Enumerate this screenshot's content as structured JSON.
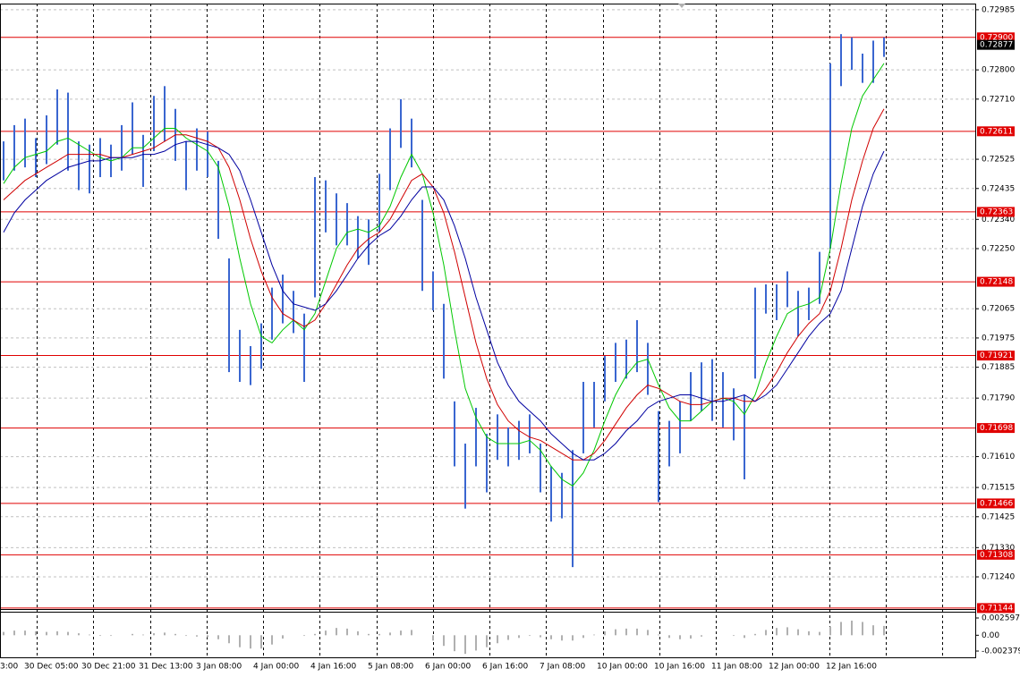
{
  "chart_data": {
    "type": "ohlc",
    "bar_color": "#3a66d0",
    "grid": true,
    "ylim": [
      0.71141,
      0.73004
    ],
    "yticks": [
      0.72985,
      {
        "value": 0.728,
        "label": "0.72800"
      },
      {
        "value": 0.7271,
        "label": "0.72710"
      },
      0.72525,
      0.72435,
      {
        "value": 0.7234,
        "label": "0.72340"
      },
      {
        "value": 0.7225,
        "label": "0.72250"
      },
      0.72065,
      0.71975,
      0.71885,
      {
        "value": 0.7179,
        "label": "0.71790"
      },
      {
        "value": 0.7161,
        "label": "0.71610"
      },
      0.71515,
      0.71425,
      {
        "value": 0.7133,
        "label": "0.71330"
      },
      {
        "value": 0.7124,
        "label": "0.71240"
      }
    ],
    "levels": {
      "color": "#e00000",
      "values": [
        {
          "value": 0.729,
          "label": "0.72900"
        },
        {
          "value": 0.72611,
          "label": "0.72611"
        },
        {
          "value": 0.72363,
          "label": "0.72363"
        },
        {
          "value": 0.72148,
          "label": "0.72148"
        },
        {
          "value": 0.71921,
          "label": "0.71921"
        },
        {
          "value": 0.71698,
          "label": "0.71698"
        },
        {
          "value": 0.71466,
          "label": "0.71466"
        },
        {
          "value": 0.71308,
          "label": "0.71308"
        },
        {
          "value": 0.71144,
          "label": "0.71144"
        }
      ]
    },
    "current_price": 0.72877,
    "time_labels": [
      "3:00",
      "30 Dec 05:00",
      "30 Dec 21:00",
      "31 Dec 13:00",
      "3 Jan 08:00",
      "4 Jan 00:00",
      "4 Jan 16:00",
      "5 Jan 08:00",
      "6 Jan 00:00",
      "6 Jan 16:00",
      "7 Jan 08:00",
      "10 Jan 00:00",
      "10 Jan 16:00",
      "11 Jan 08:00",
      "12 Jan 00:00",
      "12 Jan 16:00"
    ],
    "low": [
      0.7246,
      0.7249,
      0.725,
      0.7247,
      0.7251,
      0.7257,
      0.7249,
      0.7243,
      0.7242,
      0.7247,
      0.7247,
      0.7249,
      0.7254,
      0.7244,
      0.7255,
      0.7258,
      0.7252,
      0.7243,
      0.7249,
      0.7247,
      0.7228,
      0.7187,
      0.7184,
      0.7183,
      0.7188,
      0.7197,
      0.7202,
      0.7199,
      0.7184,
      0.721,
      0.723,
      0.7226,
      0.7226,
      0.7222,
      0.722,
      0.723,
      0.7243,
      0.7256,
      0.725,
      0.7212,
      0.7206,
      0.7185,
      0.7158,
      0.7145,
      0.7158,
      0.715,
      0.716,
      0.7158,
      0.716,
      0.7162,
      0.715,
      0.7141,
      0.7142,
      0.7127,
      0.7162,
      0.717,
      0.7178,
      0.7184,
      0.7185,
      0.7187,
      0.718,
      0.7147,
      0.7158,
      0.7162,
      0.7172,
      0.7175,
      0.7172,
      0.717,
      0.7166,
      0.7154,
      0.7185,
      0.7205,
      0.7203,
      0.7207,
      0.7198,
      0.7203,
      0.7208,
      0.7225,
      0.7275,
      0.728,
      0.7276,
      0.7276,
      0.7284
    ],
    "high": [
      0.7258,
      0.7263,
      0.7265,
      0.7259,
      0.7266,
      0.7274,
      0.7273,
      0.7258,
      0.7257,
      0.7259,
      0.7257,
      0.7263,
      0.727,
      0.726,
      0.7272,
      0.7275,
      0.7268,
      0.7258,
      0.7262,
      0.7261,
      0.7252,
      0.7222,
      0.72,
      0.7195,
      0.7202,
      0.7213,
      0.7217,
      0.7212,
      0.7205,
      0.7247,
      0.7246,
      0.7242,
      0.7239,
      0.7235,
      0.7234,
      0.7248,
      0.7262,
      0.7271,
      0.7265,
      0.724,
      0.7218,
      0.7208,
      0.7178,
      0.7165,
      0.7176,
      0.7168,
      0.7174,
      0.717,
      0.7172,
      0.7174,
      0.7165,
      0.7158,
      0.7156,
      0.7163,
      0.7184,
      0.7184,
      0.7192,
      0.7196,
      0.7197,
      0.7203,
      0.7196,
      0.7175,
      0.7172,
      0.7178,
      0.7187,
      0.719,
      0.7191,
      0.7187,
      0.7182,
      0.718,
      0.7213,
      0.7214,
      0.7214,
      0.7218,
      0.7212,
      0.7213,
      0.7224,
      0.7282,
      0.7291,
      0.729,
      0.7285,
      0.7289,
      0.729
    ],
    "series": [
      {
        "color": "#00c800",
        "values": [
          0.7245,
          0.725,
          0.7253,
          0.7254,
          0.7255,
          0.7258,
          0.7259,
          0.7257,
          0.7255,
          0.7253,
          0.7252,
          0.7253,
          0.7256,
          0.7256,
          0.7259,
          0.7262,
          0.7262,
          0.7259,
          0.7257,
          0.7255,
          0.725,
          0.7238,
          0.7222,
          0.7208,
          0.7198,
          0.7196,
          0.72,
          0.7203,
          0.72,
          0.7205,
          0.7215,
          0.7225,
          0.723,
          0.7231,
          0.723,
          0.7232,
          0.7238,
          0.7247,
          0.7254,
          0.7248,
          0.7236,
          0.722,
          0.72,
          0.7182,
          0.7173,
          0.7167,
          0.7165,
          0.7165,
          0.7165,
          0.7166,
          0.7163,
          0.7158,
          0.7154,
          0.7152,
          0.7156,
          0.7163,
          0.7172,
          0.718,
          0.7186,
          0.719,
          0.7191,
          0.7183,
          0.7176,
          0.7172,
          0.7172,
          0.7175,
          0.7178,
          0.7179,
          0.7178,
          0.7174,
          0.718,
          0.719,
          0.7198,
          0.7205,
          0.7207,
          0.7208,
          0.721,
          0.7225,
          0.7245,
          0.7262,
          0.7272,
          0.7277,
          0.7282
        ]
      },
      {
        "color": "#d00000",
        "values": [
          0.724,
          0.7243,
          0.7246,
          0.7248,
          0.725,
          0.7252,
          0.7254,
          0.7254,
          0.7254,
          0.7254,
          0.7253,
          0.7253,
          0.7254,
          0.7255,
          0.7256,
          0.7258,
          0.726,
          0.726,
          0.7259,
          0.7258,
          0.7256,
          0.725,
          0.724,
          0.7228,
          0.7218,
          0.721,
          0.7205,
          0.7203,
          0.7201,
          0.7203,
          0.7208,
          0.7214,
          0.722,
          0.7225,
          0.7228,
          0.723,
          0.7234,
          0.724,
          0.7246,
          0.7248,
          0.7244,
          0.7236,
          0.7224,
          0.721,
          0.7196,
          0.7185,
          0.7177,
          0.7172,
          0.7169,
          0.7167,
          0.7166,
          0.7164,
          0.7162,
          0.716,
          0.716,
          0.7162,
          0.7166,
          0.7171,
          0.7176,
          0.718,
          0.7183,
          0.7182,
          0.718,
          0.7178,
          0.7177,
          0.7177,
          0.7178,
          0.7179,
          0.7179,
          0.7178,
          0.7178,
          0.7182,
          0.7187,
          0.7193,
          0.7198,
          0.7202,
          0.7205,
          0.7212,
          0.7225,
          0.724,
          0.7252,
          0.7262,
          0.7268
        ]
      },
      {
        "color": "#0000a0",
        "values": [
          0.723,
          0.7236,
          0.724,
          0.7243,
          0.7246,
          0.7248,
          0.725,
          0.7251,
          0.7252,
          0.7252,
          0.7253,
          0.7253,
          0.7253,
          0.7254,
          0.7254,
          0.7255,
          0.7257,
          0.7258,
          0.7258,
          0.7257,
          0.7256,
          0.7254,
          0.7249,
          0.724,
          0.723,
          0.722,
          0.7212,
          0.7208,
          0.7207,
          0.7206,
          0.7208,
          0.7212,
          0.7217,
          0.7222,
          0.7226,
          0.7229,
          0.7231,
          0.7235,
          0.724,
          0.7244,
          0.7244,
          0.724,
          0.7232,
          0.7222,
          0.721,
          0.72,
          0.719,
          0.7183,
          0.7178,
          0.7175,
          0.7172,
          0.7168,
          0.7165,
          0.7162,
          0.716,
          0.716,
          0.7162,
          0.7165,
          0.7169,
          0.7172,
          0.7176,
          0.7178,
          0.7179,
          0.718,
          0.718,
          0.7179,
          0.7178,
          0.7178,
          0.7179,
          0.718,
          0.7178,
          0.718,
          0.7183,
          0.7188,
          0.7193,
          0.7198,
          0.7202,
          0.7205,
          0.7212,
          0.7225,
          0.7238,
          0.7248,
          0.7255
        ]
      }
    ],
    "oscillator": {
      "color": "#b0b0b0",
      "ylim": [
        -0.00305,
        0.00327
      ],
      "yticks": [
        0.002597,
        {
          "value": 0,
          "label": "0.00"
        },
        -0.002379
      ],
      "values": [
        0.0005,
        0.0007,
        0.0007,
        0.0006,
        0.0005,
        0.0006,
        0.0005,
        0.0003,
        0.0001,
        -0.0001,
        -0.0001,
        0,
        0.0002,
        0.0001,
        0.0003,
        0.0004,
        0.0002,
        -0.0001,
        -0.0002,
        -0.0003,
        -0.0006,
        -0.0012,
        -0.0018,
        -0.002,
        -0.002,
        -0.0014,
        -0.0005,
        0,
        -0.0001,
        0.0002,
        0.0007,
        0.0011,
        0.001,
        0.0006,
        0.0002,
        0.0002,
        0.0004,
        0.0007,
        0.0008,
        0,
        -0.0008,
        -0.0016,
        -0.0024,
        -0.0028,
        -0.0023,
        -0.0018,
        -0.0012,
        -0.0007,
        -0.0004,
        -0.0001,
        -0.0003,
        -0.0006,
        -0.0008,
        -0.0008,
        -0.0004,
        0.0001,
        0.0006,
        0.0009,
        0.001,
        0.001,
        0.0008,
        0.0001,
        -0.0004,
        -0.0006,
        -0.0005,
        -0.0002,
        0,
        0,
        -0.0001,
        -0.0004,
        0.0002,
        0.0008,
        0.0011,
        0.0012,
        0.0009,
        0.0006,
        0.0005,
        0.0013,
        0.002,
        0.0022,
        0.002,
        0.0015,
        0.0014
      ]
    }
  }
}
